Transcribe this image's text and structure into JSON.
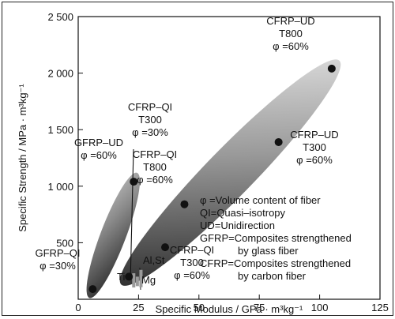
{
  "chart_data": {
    "type": "scatter",
    "title": "",
    "xlabel": "Specific Modulus / GPa · m³kg⁻¹",
    "ylabel": "Specific Strength / MPa · m³kg⁻¹",
    "xlim": [
      0,
      125
    ],
    "ylim": [
      0,
      2500
    ],
    "xticks": [
      {
        "value": 0,
        "label": "0"
      },
      {
        "value": 25,
        "label": "25"
      },
      {
        "value": 50,
        "label": "50"
      },
      {
        "value": 75,
        "label": "75"
      },
      {
        "value": 100,
        "label": "100"
      },
      {
        "value": 125,
        "label": "125"
      }
    ],
    "yticks": [
      {
        "value": 500,
        "label": "500"
      },
      {
        "value": 1000,
        "label": "1 000"
      },
      {
        "value": 1500,
        "label": "1 500"
      },
      {
        "value": 2000,
        "label": "2 000"
      },
      {
        "value": 2500,
        "label": "2 500"
      }
    ],
    "grid": false,
    "points": [
      {
        "name": "GFRP-QI",
        "x": 6,
        "y": 90
      },
      {
        "name": "GFRP-UD",
        "x": 23,
        "y": 1040
      },
      {
        "name": "CFRP-QI T800",
        "x": 21,
        "y": 200
      },
      {
        "name": "CFRP-QI T300",
        "x": 36,
        "y": 460
      },
      {
        "name": "CFRP-QI T300 φ=30%",
        "x": 44,
        "y": 840
      },
      {
        "name": "CFRP-UD T300",
        "x": 83,
        "y": 1390
      },
      {
        "name": "CFRP-UD T800",
        "x": 105,
        "y": 2040
      }
    ],
    "regions": [
      {
        "name": "GFRP",
        "from": [
          6,
          90
        ],
        "to": [
          23,
          1040
        ]
      },
      {
        "name": "CFRP",
        "from": [
          21,
          200
        ],
        "to": [
          105,
          2040
        ]
      }
    ],
    "metals": [
      {
        "name": "Ti",
        "x": 23.0,
        "y": 230
      },
      {
        "name": "Mg",
        "x": 24.5,
        "y": 200
      },
      {
        "name": "Al,St",
        "x": 26.0,
        "y": 260
      }
    ],
    "annotations": {
      "gfrp_qi": [
        "GFRP–QI",
        "φ =30%"
      ],
      "gfrp_ud": [
        "GFRP–UD",
        "φ =60%"
      ],
      "cfrp_qi_t300_30": [
        "CFRP–QI",
        "T300",
        "φ =30%"
      ],
      "cfrp_qi_t800": [
        "CFRP–QI",
        "T800",
        "φ =60%"
      ],
      "cfrp_ud_t800": [
        "CFRP–UD",
        "T800",
        "φ =60%"
      ],
      "cfrp_ud_t300": [
        "CFRP–UD",
        "T300",
        "φ =60%"
      ],
      "cfrp_qi_t300_60": [
        "CFRP–QI",
        "T300",
        "φ =60%"
      ],
      "ti": "Ti",
      "al_st": "Al,St",
      "mg": "Mg"
    },
    "legend_note": [
      "φ =Volume content of fiber",
      "QI=Quasi–isotropy",
      "UD=Unidirection",
      "GFRP=Composites strengthened",
      "by glass fiber",
      "CFRP=Composites strengthened",
      "by carbon fiber"
    ]
  }
}
